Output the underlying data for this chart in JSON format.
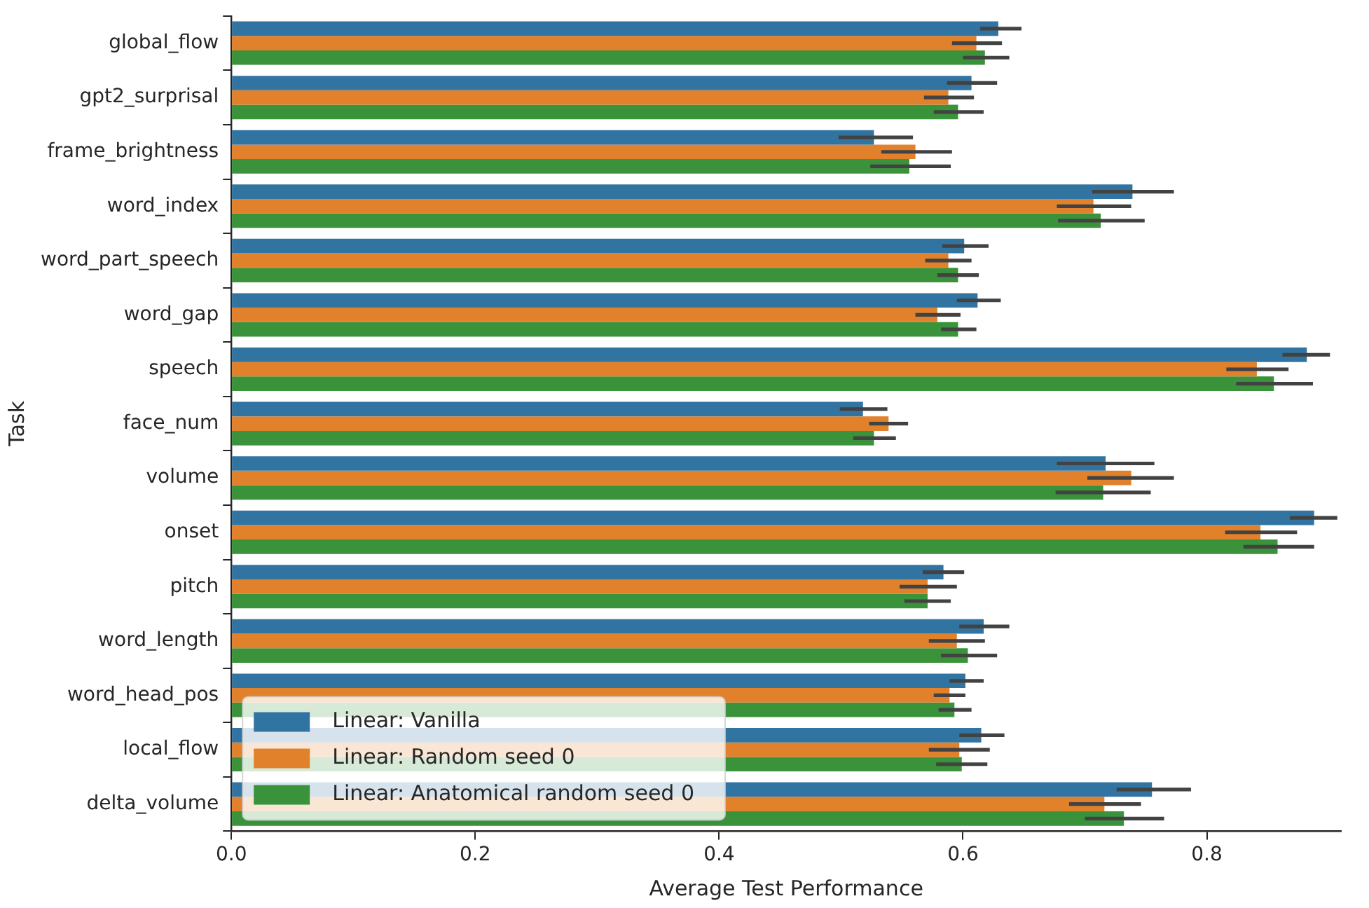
{
  "chart_data": {
    "type": "bar",
    "orientation": "horizontal",
    "xlabel": "Average Test Performance",
    "ylabel": "Task",
    "categories": [
      "global_flow",
      "gpt2_surprisal",
      "frame_brightness",
      "word_index",
      "word_part_speech",
      "word_gap",
      "speech",
      "face_num",
      "volume",
      "onset",
      "pitch",
      "word_length",
      "word_head_pos",
      "local_flow",
      "delta_volume"
    ],
    "series": [
      {
        "name": "Linear: Vanilla",
        "color": "#3274a1",
        "values": [
          0.629,
          0.607,
          0.527,
          0.739,
          0.601,
          0.612,
          0.882,
          0.518,
          0.717,
          0.888,
          0.584,
          0.617,
          0.602,
          0.615,
          0.755
        ],
        "errors": [
          [
            0.614,
            0.648
          ],
          [
            0.587,
            0.628
          ],
          [
            0.498,
            0.559
          ],
          [
            0.706,
            0.773
          ],
          [
            0.583,
            0.621
          ],
          [
            0.595,
            0.631
          ],
          [
            0.862,
            0.901
          ],
          [
            0.499,
            0.538
          ],
          [
            0.677,
            0.757
          ],
          [
            0.868,
            0.907
          ],
          [
            0.567,
            0.601
          ],
          [
            0.597,
            0.638
          ],
          [
            0.589,
            0.617
          ],
          [
            0.597,
            0.634
          ],
          [
            0.726,
            0.787
          ]
        ]
      },
      {
        "name": "Linear: Random seed 0",
        "color": "#e1812c",
        "values": [
          0.611,
          0.588,
          0.561,
          0.707,
          0.588,
          0.579,
          0.841,
          0.539,
          0.738,
          0.844,
          0.571,
          0.595,
          0.589,
          0.597,
          0.716
        ],
        "errors": [
          [
            0.591,
            0.632
          ],
          [
            0.568,
            0.609
          ],
          [
            0.533,
            0.591
          ],
          [
            0.677,
            0.738
          ],
          [
            0.569,
            0.607
          ],
          [
            0.561,
            0.598
          ],
          [
            0.816,
            0.867
          ],
          [
            0.523,
            0.555
          ],
          [
            0.702,
            0.773
          ],
          [
            0.815,
            0.874
          ],
          [
            0.548,
            0.595
          ],
          [
            0.572,
            0.618
          ],
          [
            0.576,
            0.602
          ],
          [
            0.572,
            0.622
          ],
          [
            0.687,
            0.746
          ]
        ]
      },
      {
        "name": "Linear: Anatomical random seed 0",
        "color": "#3a923a",
        "values": [
          0.618,
          0.596,
          0.556,
          0.713,
          0.596,
          0.596,
          0.855,
          0.527,
          0.715,
          0.858,
          0.571,
          0.604,
          0.593,
          0.599,
          0.732
        ],
        "errors": [
          [
            0.6,
            0.638
          ],
          [
            0.576,
            0.617
          ],
          [
            0.524,
            0.59
          ],
          [
            0.678,
            0.749
          ],
          [
            0.579,
            0.613
          ],
          [
            0.582,
            0.611
          ],
          [
            0.824,
            0.887
          ],
          [
            0.51,
            0.545
          ],
          [
            0.676,
            0.754
          ],
          [
            0.83,
            0.888
          ],
          [
            0.552,
            0.59
          ],
          [
            0.582,
            0.628
          ],
          [
            0.58,
            0.607
          ],
          [
            0.578,
            0.62
          ],
          [
            0.7,
            0.765
          ]
        ]
      }
    ],
    "xlim": [
      0,
      0.91
    ],
    "xticks": [
      {
        "value": 0,
        "label": "0.0"
      },
      {
        "value": 0.2,
        "label": "0.2"
      },
      {
        "value": 0.4,
        "label": "0.4"
      },
      {
        "value": 0.6,
        "label": "0.6"
      },
      {
        "value": 0.8,
        "label": "0.8"
      }
    ],
    "grid": false,
    "legend": "bottom left"
  }
}
